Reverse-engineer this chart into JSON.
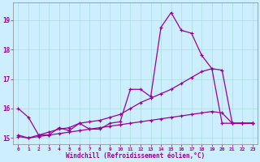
{
  "title": "",
  "xlabel": "Windchill (Refroidissement éolien,°C)",
  "ylabel": "",
  "background_color": "#cceeff",
  "line_color": "#990099",
  "xlim": [
    -0.5,
    23.5
  ],
  "ylim": [
    14.8,
    19.6
  ],
  "xticks": [
    0,
    1,
    2,
    3,
    4,
    5,
    6,
    7,
    8,
    9,
    10,
    11,
    12,
    13,
    14,
    15,
    16,
    17,
    18,
    19,
    20,
    21,
    22,
    23
  ],
  "yticks": [
    15,
    16,
    17,
    18,
    19
  ],
  "grid_color": "#aadddd",
  "series": [
    {
      "x": [
        0,
        1,
        2,
        3,
        4,
        5,
        6,
        7,
        8,
        9,
        10,
        11,
        12,
        13,
        14,
        15,
        16,
        17,
        18,
        19,
        20,
        21,
        22,
        23
      ],
      "y": [
        16.0,
        15.7,
        15.1,
        15.1,
        15.35,
        15.25,
        15.5,
        15.3,
        15.3,
        15.5,
        15.55,
        16.65,
        16.65,
        16.4,
        18.75,
        19.25,
        18.65,
        18.55,
        17.8,
        17.35,
        15.5,
        15.5,
        15.5,
        15.5
      ]
    },
    {
      "x": [
        0,
        1,
        2,
        3,
        4,
        5,
        6,
        7,
        8,
        9,
        10,
        11,
        12,
        13,
        14,
        15,
        16,
        17,
        18,
        19,
        20,
        21,
        22,
        23
      ],
      "y": [
        15.1,
        15.0,
        15.1,
        15.2,
        15.3,
        15.35,
        15.5,
        15.55,
        15.6,
        15.7,
        15.8,
        16.0,
        16.2,
        16.35,
        16.5,
        16.65,
        16.85,
        17.05,
        17.25,
        17.35,
        17.3,
        15.5,
        15.5,
        15.5
      ]
    },
    {
      "x": [
        0,
        1,
        2,
        3,
        4,
        5,
        6,
        7,
        8,
        9,
        10,
        11,
        12,
        13,
        14,
        15,
        16,
        17,
        18,
        19,
        20,
        21,
        22,
        23
      ],
      "y": [
        15.05,
        15.0,
        15.05,
        15.1,
        15.15,
        15.2,
        15.25,
        15.3,
        15.35,
        15.4,
        15.45,
        15.5,
        15.55,
        15.6,
        15.65,
        15.7,
        15.75,
        15.8,
        15.85,
        15.9,
        15.85,
        15.5,
        15.5,
        15.5
      ]
    }
  ]
}
